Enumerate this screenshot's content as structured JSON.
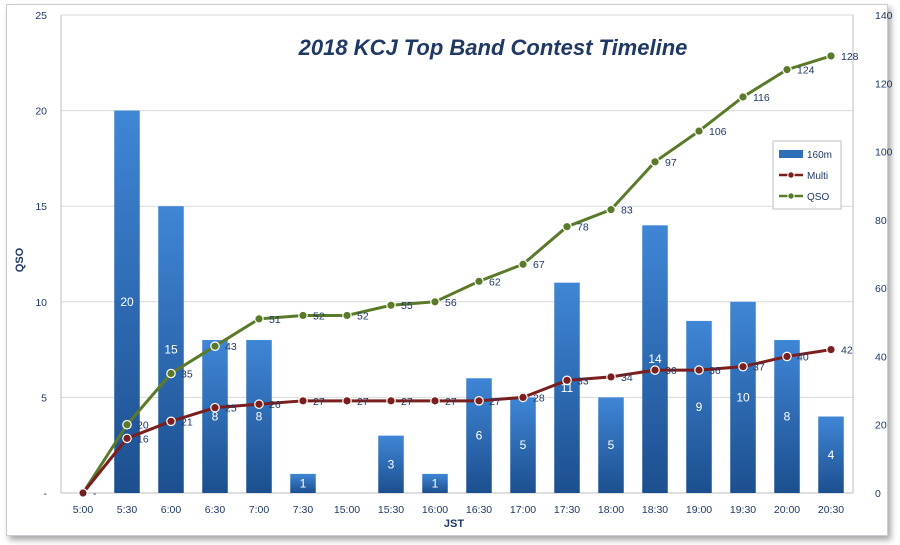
{
  "chart_data": {
    "type": "bar",
    "title": "2018 KCJ Top Band Contest Timeline",
    "xlabel": "JST",
    "ylabel": "QSO",
    "y_left_range": [
      0,
      25
    ],
    "y_left_ticks": [
      "-",
      "5",
      "10",
      "15",
      "20",
      "25"
    ],
    "y_right_range": [
      0,
      140
    ],
    "y_right_ticks": [
      "0",
      "20",
      "40",
      "60",
      "80",
      "100",
      "120",
      "140"
    ],
    "grid": true,
    "legend_position": "right",
    "categories": [
      "5:00",
      "5:30",
      "6:00",
      "6:30",
      "7:00",
      "7:30",
      "15:00",
      "15:30",
      "16:00",
      "16:30",
      "17:00",
      "17:30",
      "18:00",
      "18:30",
      "19:00",
      "19:30",
      "20:00",
      "20:30"
    ],
    "series": [
      {
        "name": "160m",
        "type": "bar",
        "axis": "left",
        "color": "#2e6fb8",
        "values": [
          0,
          20,
          15,
          8,
          8,
          1,
          0,
          3,
          1,
          6,
          5,
          11,
          5,
          14,
          9,
          10,
          8,
          4
        ],
        "labels": [
          "-",
          "20",
          "15",
          "8",
          "8",
          "1",
          "",
          "3",
          "1",
          "6",
          "5",
          "11",
          "5",
          "14",
          "9",
          "10",
          "8",
          "4"
        ]
      },
      {
        "name": "Multi",
        "type": "line",
        "axis": "right",
        "color": "#7b1e1e",
        "values": [
          0,
          16,
          21,
          25,
          26,
          27,
          27,
          27,
          27,
          27,
          28,
          33,
          34,
          36,
          36,
          37,
          40,
          42
        ],
        "labels": [
          "-",
          "16",
          "21",
          "25",
          "26",
          "27",
          "27",
          "27",
          "27",
          "27",
          "28",
          "33",
          "34",
          "36",
          "36",
          "37",
          "40",
          "42"
        ]
      },
      {
        "name": "QSO",
        "type": "line",
        "axis": "right",
        "color": "#5a7a2a",
        "values": [
          0,
          20,
          35,
          43,
          51,
          52,
          52,
          55,
          56,
          62,
          67,
          78,
          83,
          97,
          106,
          116,
          124,
          128
        ],
        "labels": [
          "",
          "20",
          "35",
          "43",
          "51",
          "52",
          "52",
          "55",
          "56",
          "62",
          "67",
          "78",
          "83",
          "97",
          "106",
          "116",
          "124",
          "128"
        ]
      }
    ]
  }
}
